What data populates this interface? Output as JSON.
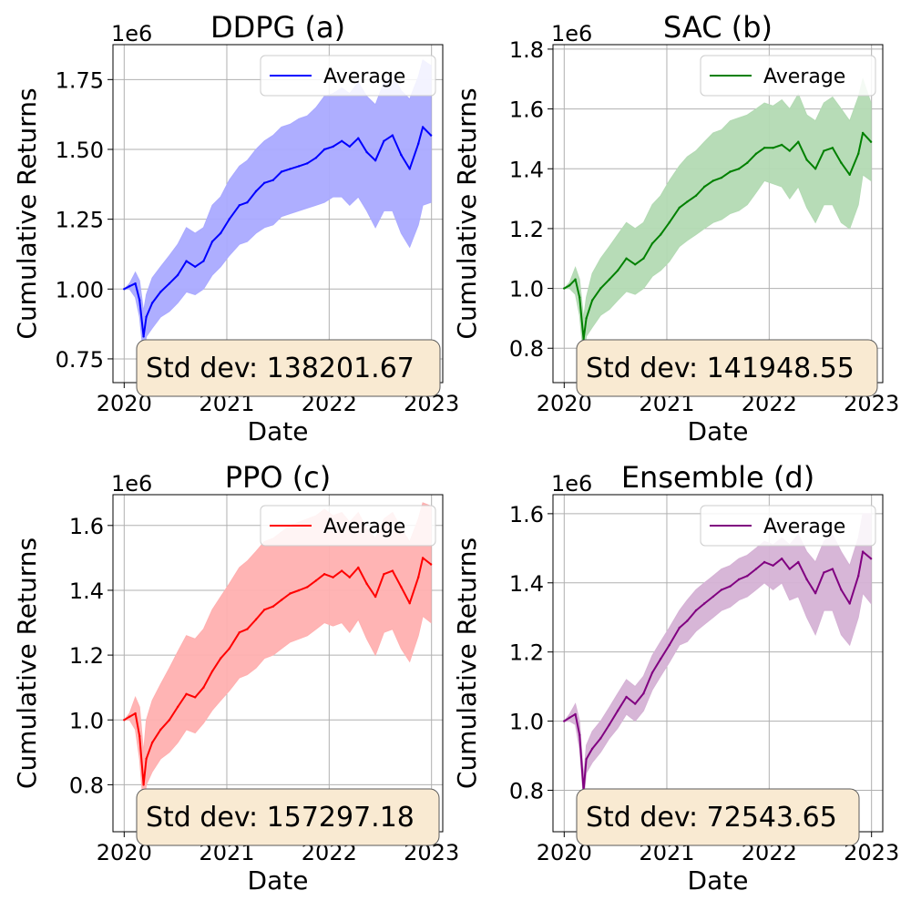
{
  "chart_data": [
    {
      "type": "line",
      "title": "DDPG (a)",
      "xlabel": "Date",
      "ylabel": "Cumulative Returns",
      "offset_text": "1e6",
      "xlim": [
        "2019-11-22",
        "2023-02-10"
      ],
      "ylim": [
        0.665,
        1.875
      ],
      "xticks": [
        {
          "value": "2020-01-01",
          "label": "2020"
        },
        {
          "value": "2021-01-01",
          "label": "2021"
        },
        {
          "value": "2022-01-01",
          "label": "2022"
        },
        {
          "value": "2023-01-01",
          "label": "2023"
        }
      ],
      "yticks": [
        {
          "value": 0.75,
          "label": "0.75"
        },
        {
          "value": 1.0,
          "label": "1.00"
        },
        {
          "value": 1.25,
          "label": "1.25"
        },
        {
          "value": 1.5,
          "label": "1.50"
        },
        {
          "value": 1.75,
          "label": "1.75"
        }
      ],
      "grid": true,
      "legend_position": "top-right",
      "series": [
        {
          "name": "Average",
          "color": "#0000ff",
          "band_color": "#aaaaff",
          "x": [
            "2020-01-01",
            "2020-01-20",
            "2020-02-10",
            "2020-02-25",
            "2020-03-10",
            "2020-03-20",
            "2020-04-10",
            "2020-05-10",
            "2020-06-10",
            "2020-07-10",
            "2020-08-10",
            "2020-09-10",
            "2020-10-10",
            "2020-11-10",
            "2020-12-10",
            "2021-01-10",
            "2021-02-15",
            "2021-03-15",
            "2021-04-15",
            "2021-05-15",
            "2021-06-15",
            "2021-07-15",
            "2021-08-15",
            "2021-09-15",
            "2021-10-15",
            "2021-11-15",
            "2021-12-15",
            "2022-01-15",
            "2022-02-15",
            "2022-03-15",
            "2022-04-15",
            "2022-05-15",
            "2022-06-15",
            "2022-07-15",
            "2022-08-15",
            "2022-09-15",
            "2022-10-15",
            "2022-11-15",
            "2022-12-01",
            "2022-12-30"
          ],
          "mean": [
            1.0,
            1.01,
            1.02,
            0.96,
            0.83,
            0.9,
            0.95,
            0.99,
            1.02,
            1.05,
            1.1,
            1.08,
            1.1,
            1.17,
            1.2,
            1.25,
            1.3,
            1.31,
            1.35,
            1.38,
            1.39,
            1.42,
            1.43,
            1.44,
            1.45,
            1.47,
            1.5,
            1.51,
            1.53,
            1.51,
            1.54,
            1.49,
            1.46,
            1.53,
            1.55,
            1.48,
            1.43,
            1.52,
            1.58,
            1.55
          ],
          "lower": [
            1.0,
            1.0,
            0.97,
            0.9,
            0.76,
            0.83,
            0.86,
            0.9,
            0.92,
            0.95,
            0.99,
            0.98,
            1.0,
            1.05,
            1.08,
            1.12,
            1.16,
            1.17,
            1.2,
            1.22,
            1.23,
            1.26,
            1.27,
            1.28,
            1.29,
            1.3,
            1.31,
            1.33,
            1.33,
            1.3,
            1.33,
            1.28,
            1.22,
            1.28,
            1.28,
            1.2,
            1.15,
            1.23,
            1.3,
            1.31
          ],
          "upper": [
            1.0,
            1.02,
            1.06,
            1.03,
            0.92,
            0.98,
            1.04,
            1.08,
            1.12,
            1.16,
            1.22,
            1.2,
            1.22,
            1.3,
            1.33,
            1.39,
            1.44,
            1.46,
            1.5,
            1.53,
            1.55,
            1.58,
            1.59,
            1.61,
            1.62,
            1.65,
            1.69,
            1.7,
            1.72,
            1.7,
            1.74,
            1.69,
            1.66,
            1.74,
            1.77,
            1.71,
            1.68,
            1.76,
            1.82,
            1.8
          ]
        }
      ],
      "annotation": "Std dev: 138201.67"
    },
    {
      "type": "line",
      "title": "SAC (b)",
      "xlabel": "Date",
      "ylabel": "Cumulative Returns",
      "offset_text": "1e6",
      "xlim": [
        "2019-11-22",
        "2023-02-10"
      ],
      "ylim": [
        0.685,
        1.815
      ],
      "xticks": [
        {
          "value": "2020-01-01",
          "label": "2020"
        },
        {
          "value": "2021-01-01",
          "label": "2021"
        },
        {
          "value": "2022-01-01",
          "label": "2022"
        },
        {
          "value": "2023-01-01",
          "label": "2023"
        }
      ],
      "yticks": [
        {
          "value": 0.8,
          "label": "0.8"
        },
        {
          "value": 1.0,
          "label": "1.0"
        },
        {
          "value": 1.2,
          "label": "1.2"
        },
        {
          "value": 1.4,
          "label": "1.4"
        },
        {
          "value": 1.6,
          "label": "1.6"
        },
        {
          "value": 1.8,
          "label": "1.8"
        }
      ],
      "grid": true,
      "legend_position": "top-right",
      "series": [
        {
          "name": "Average",
          "color": "#008000",
          "band_color": "#b3dab3",
          "x": [
            "2020-01-01",
            "2020-01-20",
            "2020-02-10",
            "2020-02-25",
            "2020-03-10",
            "2020-03-20",
            "2020-04-10",
            "2020-05-10",
            "2020-06-10",
            "2020-07-10",
            "2020-08-10",
            "2020-09-10",
            "2020-10-10",
            "2020-11-10",
            "2020-12-10",
            "2021-01-10",
            "2021-02-15",
            "2021-03-15",
            "2021-04-15",
            "2021-05-15",
            "2021-06-15",
            "2021-07-15",
            "2021-08-15",
            "2021-09-15",
            "2021-10-15",
            "2021-11-15",
            "2021-12-15",
            "2022-01-15",
            "2022-02-15",
            "2022-03-15",
            "2022-04-15",
            "2022-05-15",
            "2022-06-15",
            "2022-07-15",
            "2022-08-15",
            "2022-09-15",
            "2022-10-15",
            "2022-11-15",
            "2022-12-01",
            "2022-12-30"
          ],
          "mean": [
            1.0,
            1.01,
            1.03,
            0.97,
            0.83,
            0.9,
            0.96,
            1.0,
            1.03,
            1.06,
            1.1,
            1.08,
            1.1,
            1.15,
            1.18,
            1.22,
            1.27,
            1.29,
            1.31,
            1.34,
            1.36,
            1.37,
            1.39,
            1.4,
            1.42,
            1.45,
            1.47,
            1.47,
            1.48,
            1.46,
            1.49,
            1.43,
            1.4,
            1.46,
            1.47,
            1.42,
            1.38,
            1.45,
            1.52,
            1.49
          ],
          "lower": [
            1.0,
            1.0,
            0.98,
            0.91,
            0.77,
            0.84,
            0.87,
            0.91,
            0.93,
            0.96,
            0.99,
            0.98,
            1.0,
            1.04,
            1.06,
            1.09,
            1.14,
            1.16,
            1.18,
            1.2,
            1.22,
            1.23,
            1.25,
            1.26,
            1.28,
            1.32,
            1.36,
            1.35,
            1.34,
            1.3,
            1.34,
            1.27,
            1.22,
            1.28,
            1.28,
            1.22,
            1.2,
            1.28,
            1.38,
            1.36
          ],
          "upper": [
            1.0,
            1.02,
            1.07,
            1.03,
            0.9,
            0.97,
            1.05,
            1.1,
            1.14,
            1.18,
            1.22,
            1.2,
            1.22,
            1.28,
            1.31,
            1.36,
            1.41,
            1.44,
            1.46,
            1.49,
            1.52,
            1.53,
            1.56,
            1.57,
            1.58,
            1.6,
            1.62,
            1.61,
            1.63,
            1.6,
            1.65,
            1.58,
            1.56,
            1.62,
            1.64,
            1.6,
            1.56,
            1.64,
            1.7,
            1.62
          ]
        }
      ],
      "annotation": "Std dev: 141948.55"
    },
    {
      "type": "line",
      "title": "PPO (c)",
      "xlabel": "Date",
      "ylabel": "Cumulative Returns",
      "offset_text": "1e6",
      "xlim": [
        "2019-11-22",
        "2023-02-10"
      ],
      "ylim": [
        0.655,
        1.695
      ],
      "xticks": [
        {
          "value": "2020-01-01",
          "label": "2020"
        },
        {
          "value": "2021-01-01",
          "label": "2021"
        },
        {
          "value": "2022-01-01",
          "label": "2022"
        },
        {
          "value": "2023-01-01",
          "label": "2023"
        }
      ],
      "yticks": [
        {
          "value": 0.8,
          "label": "0.8"
        },
        {
          "value": 1.0,
          "label": "1.0"
        },
        {
          "value": 1.2,
          "label": "1.2"
        },
        {
          "value": 1.4,
          "label": "1.4"
        },
        {
          "value": 1.6,
          "label": "1.6"
        }
      ],
      "grid": true,
      "legend_position": "top-right",
      "series": [
        {
          "name": "Average",
          "color": "#ff0000",
          "band_color": "#ffb0b0",
          "x": [
            "2020-01-01",
            "2020-01-20",
            "2020-02-10",
            "2020-02-25",
            "2020-03-10",
            "2020-03-20",
            "2020-04-10",
            "2020-05-10",
            "2020-06-10",
            "2020-07-10",
            "2020-08-10",
            "2020-09-10",
            "2020-10-10",
            "2020-11-10",
            "2020-12-10",
            "2021-01-10",
            "2021-02-15",
            "2021-03-15",
            "2021-04-15",
            "2021-05-15",
            "2021-06-15",
            "2021-07-15",
            "2021-08-15",
            "2021-09-15",
            "2021-10-15",
            "2021-11-15",
            "2021-12-15",
            "2022-01-15",
            "2022-02-15",
            "2022-03-15",
            "2022-04-15",
            "2022-05-15",
            "2022-06-15",
            "2022-07-15",
            "2022-08-15",
            "2022-09-15",
            "2022-10-15",
            "2022-11-15",
            "2022-12-01",
            "2022-12-30"
          ],
          "mean": [
            1.0,
            1.01,
            1.02,
            0.95,
            0.8,
            0.88,
            0.93,
            0.97,
            1.0,
            1.04,
            1.08,
            1.07,
            1.1,
            1.15,
            1.19,
            1.22,
            1.27,
            1.28,
            1.31,
            1.34,
            1.35,
            1.37,
            1.39,
            1.4,
            1.41,
            1.43,
            1.45,
            1.44,
            1.46,
            1.44,
            1.47,
            1.42,
            1.38,
            1.45,
            1.46,
            1.41,
            1.36,
            1.44,
            1.5,
            1.48
          ],
          "lower": [
            1.0,
            1.0,
            0.97,
            0.88,
            0.73,
            0.8,
            0.84,
            0.88,
            0.9,
            0.93,
            0.97,
            0.96,
            0.99,
            1.03,
            1.06,
            1.09,
            1.13,
            1.14,
            1.16,
            1.19,
            1.2,
            1.22,
            1.24,
            1.25,
            1.26,
            1.28,
            1.3,
            1.29,
            1.3,
            1.27,
            1.31,
            1.25,
            1.2,
            1.27,
            1.28,
            1.22,
            1.18,
            1.26,
            1.32,
            1.3
          ],
          "upper": [
            1.0,
            1.02,
            1.07,
            1.04,
            0.9,
            1.0,
            1.06,
            1.11,
            1.16,
            1.21,
            1.26,
            1.25,
            1.28,
            1.34,
            1.38,
            1.42,
            1.47,
            1.49,
            1.52,
            1.55,
            1.56,
            1.58,
            1.6,
            1.61,
            1.62,
            1.63,
            1.65,
            1.63,
            1.64,
            1.61,
            1.64,
            1.59,
            1.56,
            1.62,
            1.64,
            1.59,
            1.55,
            1.62,
            1.67,
            1.66
          ]
        }
      ],
      "annotation": "Std dev: 157297.18"
    },
    {
      "type": "line",
      "title": "Ensemble (d)",
      "xlabel": "Date",
      "ylabel": "Cumulative Returns",
      "offset_text": "1e6",
      "xlim": [
        "2019-11-22",
        "2023-02-10"
      ],
      "ylim": [
        0.68,
        1.655
      ],
      "xticks": [
        {
          "value": "2020-01-01",
          "label": "2020"
        },
        {
          "value": "2021-01-01",
          "label": "2021"
        },
        {
          "value": "2022-01-01",
          "label": "2022"
        },
        {
          "value": "2023-01-01",
          "label": "2023"
        }
      ],
      "yticks": [
        {
          "value": 0.8,
          "label": "0.8"
        },
        {
          "value": 1.0,
          "label": "1.0"
        },
        {
          "value": 1.2,
          "label": "1.2"
        },
        {
          "value": 1.4,
          "label": "1.4"
        },
        {
          "value": 1.6,
          "label": "1.6"
        }
      ],
      "grid": true,
      "legend_position": "top-right",
      "series": [
        {
          "name": "Average",
          "color": "#800080",
          "band_color": "#d5b2d5",
          "x": [
            "2020-01-01",
            "2020-01-20",
            "2020-02-10",
            "2020-02-25",
            "2020-03-10",
            "2020-03-20",
            "2020-04-10",
            "2020-05-10",
            "2020-06-10",
            "2020-07-10",
            "2020-08-10",
            "2020-09-10",
            "2020-10-10",
            "2020-11-10",
            "2020-12-10",
            "2021-01-10",
            "2021-02-15",
            "2021-03-15",
            "2021-04-15",
            "2021-05-15",
            "2021-06-15",
            "2021-07-15",
            "2021-08-15",
            "2021-09-15",
            "2021-10-15",
            "2021-11-15",
            "2021-12-15",
            "2022-01-15",
            "2022-02-15",
            "2022-03-15",
            "2022-04-15",
            "2022-05-15",
            "2022-06-15",
            "2022-07-15",
            "2022-08-15",
            "2022-09-15",
            "2022-10-15",
            "2022-11-15",
            "2022-12-01",
            "2022-12-30"
          ],
          "mean": [
            1.0,
            1.01,
            1.02,
            0.96,
            0.8,
            0.89,
            0.92,
            0.95,
            0.99,
            1.03,
            1.07,
            1.05,
            1.08,
            1.14,
            1.18,
            1.22,
            1.27,
            1.29,
            1.32,
            1.34,
            1.36,
            1.38,
            1.39,
            1.41,
            1.42,
            1.44,
            1.46,
            1.45,
            1.47,
            1.44,
            1.46,
            1.41,
            1.37,
            1.43,
            1.44,
            1.38,
            1.34,
            1.42,
            1.49,
            1.47
          ],
          "lower": [
            1.0,
            1.0,
            0.99,
            0.92,
            0.77,
            0.85,
            0.88,
            0.91,
            0.95,
            0.98,
            1.02,
            1.0,
            1.03,
            1.09,
            1.13,
            1.17,
            1.22,
            1.23,
            1.26,
            1.28,
            1.3,
            1.32,
            1.33,
            1.35,
            1.36,
            1.38,
            1.4,
            1.38,
            1.4,
            1.35,
            1.36,
            1.3,
            1.25,
            1.32,
            1.32,
            1.25,
            1.22,
            1.3,
            1.37,
            1.34
          ],
          "upper": [
            1.0,
            1.02,
            1.05,
            1.0,
            0.84,
            0.93,
            0.97,
            1.0,
            1.04,
            1.08,
            1.12,
            1.1,
            1.13,
            1.19,
            1.23,
            1.27,
            1.32,
            1.35,
            1.38,
            1.4,
            1.42,
            1.44,
            1.45,
            1.47,
            1.48,
            1.5,
            1.52,
            1.51,
            1.53,
            1.51,
            1.54,
            1.49,
            1.46,
            1.52,
            1.54,
            1.49,
            1.45,
            1.53,
            1.6,
            1.6
          ]
        }
      ],
      "annotation": "Std dev: 72543.65"
    }
  ]
}
